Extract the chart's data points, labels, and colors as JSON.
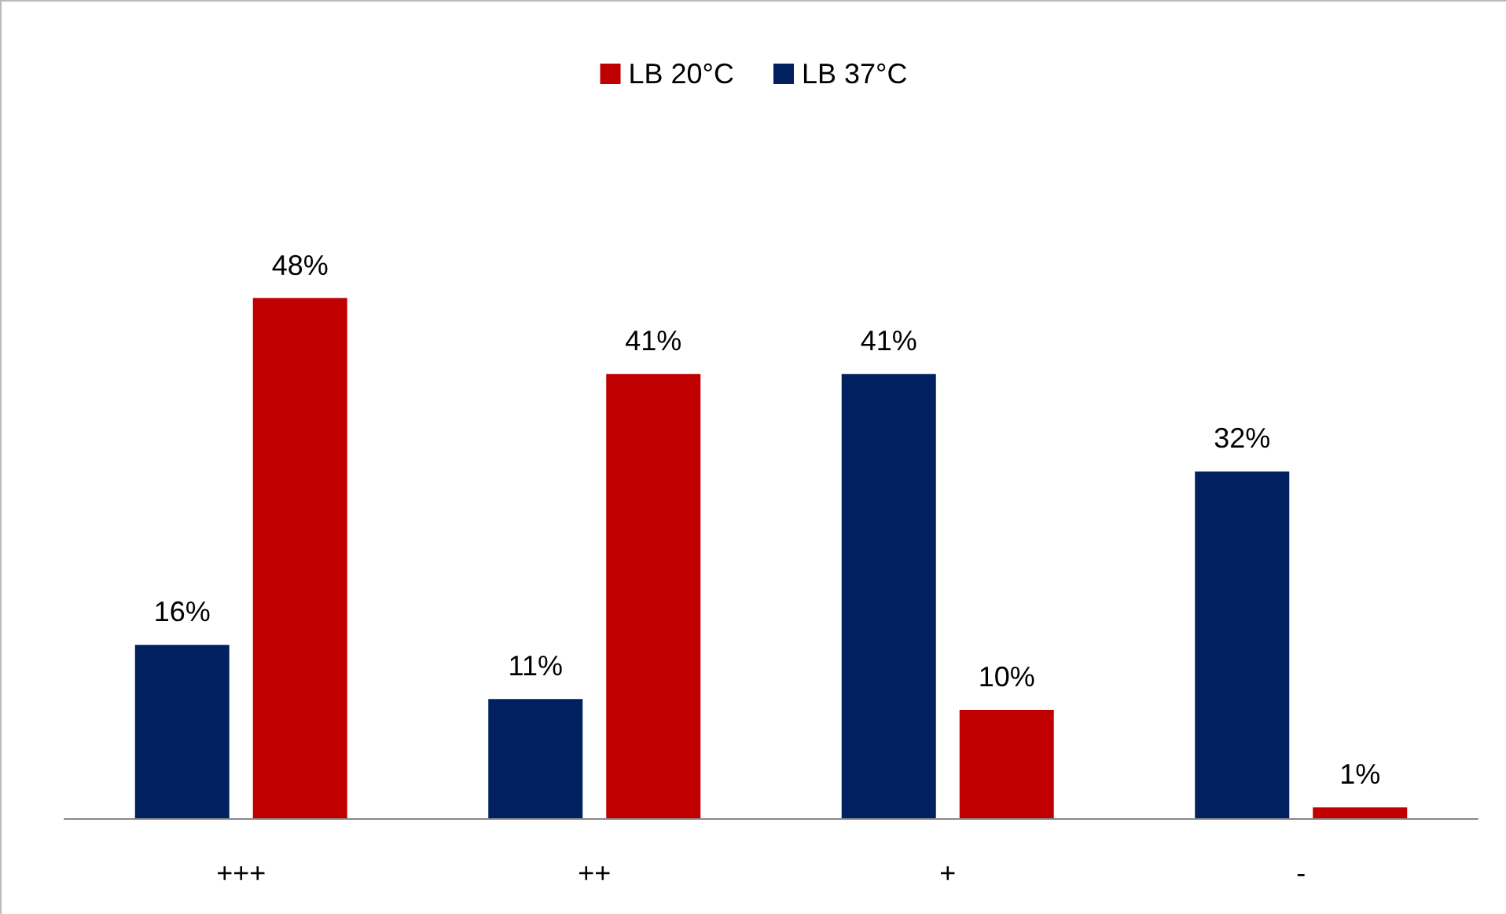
{
  "chart_data": {
    "type": "bar",
    "categories": [
      "+++",
      "++",
      "+",
      "-"
    ],
    "series": [
      {
        "name": "LB 37°C",
        "color": "#002060",
        "values": [
          16,
          11,
          41,
          32
        ],
        "value_labels": [
          "16%",
          "11%",
          "41%",
          "32%"
        ]
      },
      {
        "name": "LB 20°C",
        "color": "#c00000",
        "values": [
          48,
          41,
          10,
          1
        ],
        "value_labels": [
          "48%",
          "41%",
          "10%",
          "1%"
        ]
      }
    ],
    "legend": "top"
  }
}
